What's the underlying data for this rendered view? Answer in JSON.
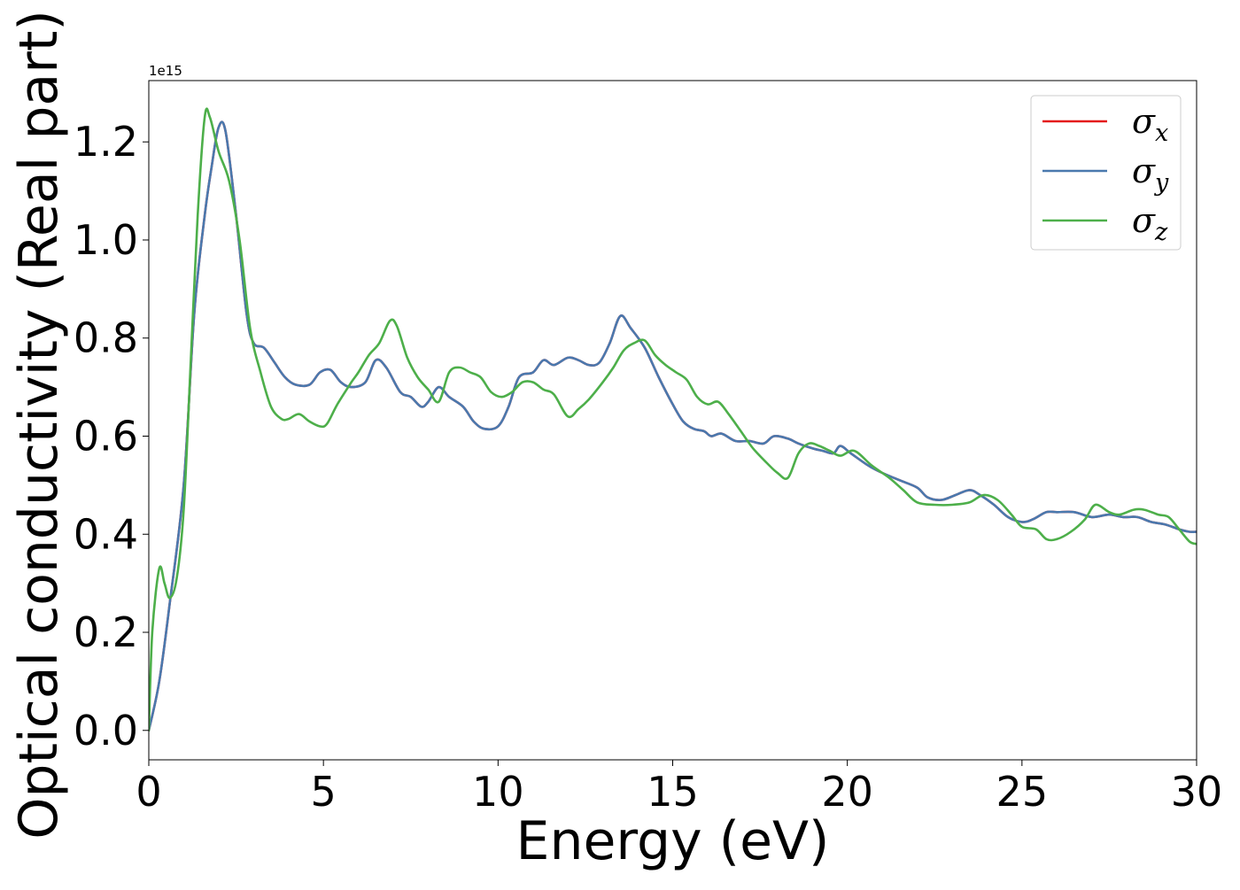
{
  "chart_data": {
    "type": "line",
    "xlabel": "Energy (eV)",
    "ylabel": "Optical conductivity (Real part)",
    "y_offset_text": "1e15",
    "xlim": [
      0,
      30
    ],
    "ylim": [
      -0.06,
      1.325
    ],
    "x_ticks": [
      0,
      5,
      10,
      15,
      20,
      25,
      30
    ],
    "x_tick_labels": [
      "0",
      "5",
      "10",
      "15",
      "20",
      "25",
      "30"
    ],
    "y_ticks": [
      0.0,
      0.2,
      0.4,
      0.6,
      0.8,
      1.0,
      1.2
    ],
    "y_tick_labels": [
      "0.0",
      "0.2",
      "0.4",
      "0.6",
      "0.8",
      "1.0",
      "1.2"
    ],
    "grid": false,
    "legend_position": "top-right",
    "series": [
      {
        "name": "σx",
        "name_base": "σ",
        "name_sub": "x",
        "color": "#e41a1c",
        "points": [
          [
            0,
            0
          ],
          [
            0.3,
            0.1
          ],
          [
            0.6,
            0.26
          ],
          [
            1.0,
            0.5
          ],
          [
            1.3,
            0.85
          ],
          [
            1.6,
            1.05
          ],
          [
            1.8,
            1.15
          ],
          [
            2.0,
            1.23
          ],
          [
            2.2,
            1.22
          ],
          [
            2.5,
            1.05
          ],
          [
            2.8,
            0.85
          ],
          [
            3.0,
            0.79
          ],
          [
            3.3,
            0.78
          ],
          [
            3.6,
            0.75
          ],
          [
            3.9,
            0.72
          ],
          [
            4.2,
            0.705
          ],
          [
            4.6,
            0.705
          ],
          [
            4.9,
            0.73
          ],
          [
            5.2,
            0.735
          ],
          [
            5.5,
            0.71
          ],
          [
            5.8,
            0.7
          ],
          [
            6.2,
            0.71
          ],
          [
            6.5,
            0.755
          ],
          [
            6.8,
            0.74
          ],
          [
            7.2,
            0.69
          ],
          [
            7.5,
            0.68
          ],
          [
            7.8,
            0.66
          ],
          [
            8.0,
            0.67
          ],
          [
            8.3,
            0.7
          ],
          [
            8.6,
            0.68
          ],
          [
            9.0,
            0.66
          ],
          [
            9.3,
            0.63
          ],
          [
            9.6,
            0.615
          ],
          [
            10.0,
            0.62
          ],
          [
            10.3,
            0.66
          ],
          [
            10.6,
            0.72
          ],
          [
            11.0,
            0.73
          ],
          [
            11.3,
            0.755
          ],
          [
            11.6,
            0.745
          ],
          [
            12.0,
            0.76
          ],
          [
            12.3,
            0.755
          ],
          [
            12.6,
            0.745
          ],
          [
            12.9,
            0.75
          ],
          [
            13.2,
            0.79
          ],
          [
            13.5,
            0.845
          ],
          [
            13.8,
            0.82
          ],
          [
            14.2,
            0.78
          ],
          [
            14.6,
            0.72
          ],
          [
            15.0,
            0.665
          ],
          [
            15.3,
            0.63
          ],
          [
            15.6,
            0.615
          ],
          [
            15.9,
            0.61
          ],
          [
            16.1,
            0.6
          ],
          [
            16.4,
            0.605
          ],
          [
            16.8,
            0.59
          ],
          [
            17.2,
            0.59
          ],
          [
            17.6,
            0.585
          ],
          [
            17.9,
            0.6
          ],
          [
            18.3,
            0.595
          ],
          [
            18.6,
            0.585
          ],
          [
            19.0,
            0.575
          ],
          [
            19.3,
            0.57
          ],
          [
            19.6,
            0.565
          ],
          [
            19.8,
            0.58
          ],
          [
            20.1,
            0.565
          ],
          [
            20.6,
            0.54
          ],
          [
            21.0,
            0.525
          ],
          [
            21.5,
            0.51
          ],
          [
            22.0,
            0.495
          ],
          [
            22.3,
            0.475
          ],
          [
            22.7,
            0.47
          ],
          [
            23.1,
            0.48
          ],
          [
            23.5,
            0.49
          ],
          [
            23.8,
            0.48
          ],
          [
            24.2,
            0.46
          ],
          [
            24.6,
            0.435
          ],
          [
            25.0,
            0.425
          ],
          [
            25.3,
            0.43
          ],
          [
            25.7,
            0.445
          ],
          [
            26.0,
            0.445
          ],
          [
            26.5,
            0.445
          ],
          [
            27.0,
            0.435
          ],
          [
            27.5,
            0.44
          ],
          [
            27.9,
            0.435
          ],
          [
            28.3,
            0.435
          ],
          [
            28.7,
            0.425
          ],
          [
            29.1,
            0.42
          ],
          [
            29.5,
            0.41
          ],
          [
            29.8,
            0.405
          ],
          [
            30.0,
            0.405
          ]
        ]
      },
      {
        "name": "σy",
        "name_base": "σ",
        "name_sub": "y",
        "color": "#4a79ae",
        "points": [
          [
            0,
            0
          ],
          [
            0.3,
            0.1
          ],
          [
            0.6,
            0.26
          ],
          [
            1.0,
            0.5
          ],
          [
            1.3,
            0.85
          ],
          [
            1.6,
            1.05
          ],
          [
            1.8,
            1.15
          ],
          [
            2.0,
            1.23
          ],
          [
            2.2,
            1.22
          ],
          [
            2.5,
            1.05
          ],
          [
            2.8,
            0.85
          ],
          [
            3.0,
            0.79
          ],
          [
            3.3,
            0.78
          ],
          [
            3.6,
            0.75
          ],
          [
            3.9,
            0.72
          ],
          [
            4.2,
            0.705
          ],
          [
            4.6,
            0.705
          ],
          [
            4.9,
            0.73
          ],
          [
            5.2,
            0.735
          ],
          [
            5.5,
            0.71
          ],
          [
            5.8,
            0.7
          ],
          [
            6.2,
            0.71
          ],
          [
            6.5,
            0.755
          ],
          [
            6.8,
            0.74
          ],
          [
            7.2,
            0.69
          ],
          [
            7.5,
            0.68
          ],
          [
            7.8,
            0.66
          ],
          [
            8.0,
            0.67
          ],
          [
            8.3,
            0.7
          ],
          [
            8.6,
            0.68
          ],
          [
            9.0,
            0.66
          ],
          [
            9.3,
            0.63
          ],
          [
            9.6,
            0.615
          ],
          [
            10.0,
            0.62
          ],
          [
            10.3,
            0.66
          ],
          [
            10.6,
            0.72
          ],
          [
            11.0,
            0.73
          ],
          [
            11.3,
            0.755
          ],
          [
            11.6,
            0.745
          ],
          [
            12.0,
            0.76
          ],
          [
            12.3,
            0.755
          ],
          [
            12.6,
            0.745
          ],
          [
            12.9,
            0.75
          ],
          [
            13.2,
            0.79
          ],
          [
            13.5,
            0.845
          ],
          [
            13.8,
            0.82
          ],
          [
            14.2,
            0.78
          ],
          [
            14.6,
            0.72
          ],
          [
            15.0,
            0.665
          ],
          [
            15.3,
            0.63
          ],
          [
            15.6,
            0.615
          ],
          [
            15.9,
            0.61
          ],
          [
            16.1,
            0.6
          ],
          [
            16.4,
            0.605
          ],
          [
            16.8,
            0.59
          ],
          [
            17.2,
            0.59
          ],
          [
            17.6,
            0.585
          ],
          [
            17.9,
            0.6
          ],
          [
            18.3,
            0.595
          ],
          [
            18.6,
            0.585
          ],
          [
            19.0,
            0.575
          ],
          [
            19.3,
            0.57
          ],
          [
            19.6,
            0.565
          ],
          [
            19.8,
            0.58
          ],
          [
            20.1,
            0.565
          ],
          [
            20.6,
            0.54
          ],
          [
            21.0,
            0.525
          ],
          [
            21.5,
            0.51
          ],
          [
            22.0,
            0.495
          ],
          [
            22.3,
            0.475
          ],
          [
            22.7,
            0.47
          ],
          [
            23.1,
            0.48
          ],
          [
            23.5,
            0.49
          ],
          [
            23.8,
            0.48
          ],
          [
            24.2,
            0.46
          ],
          [
            24.6,
            0.435
          ],
          [
            25.0,
            0.425
          ],
          [
            25.3,
            0.43
          ],
          [
            25.7,
            0.445
          ],
          [
            26.0,
            0.445
          ],
          [
            26.5,
            0.445
          ],
          [
            27.0,
            0.435
          ],
          [
            27.5,
            0.44
          ],
          [
            27.9,
            0.435
          ],
          [
            28.3,
            0.435
          ],
          [
            28.7,
            0.425
          ],
          [
            29.1,
            0.42
          ],
          [
            29.5,
            0.41
          ],
          [
            29.8,
            0.405
          ],
          [
            30.0,
            0.405
          ]
        ]
      },
      {
        "name": "σz",
        "name_base": "σ",
        "name_sub": "z",
        "color": "#4daf4a",
        "points": [
          [
            0,
            0
          ],
          [
            0.1,
            0.2
          ],
          [
            0.3,
            0.33
          ],
          [
            0.45,
            0.3
          ],
          [
            0.6,
            0.27
          ],
          [
            0.8,
            0.31
          ],
          [
            1.0,
            0.45
          ],
          [
            1.2,
            0.75
          ],
          [
            1.4,
            1.05
          ],
          [
            1.6,
            1.25
          ],
          [
            1.75,
            1.25
          ],
          [
            2.0,
            1.18
          ],
          [
            2.3,
            1.12
          ],
          [
            2.6,
            1.0
          ],
          [
            2.9,
            0.82
          ],
          [
            3.2,
            0.73
          ],
          [
            3.5,
            0.66
          ],
          [
            3.8,
            0.635
          ],
          [
            4.0,
            0.635
          ],
          [
            4.3,
            0.645
          ],
          [
            4.6,
            0.63
          ],
          [
            4.9,
            0.62
          ],
          [
            5.1,
            0.625
          ],
          [
            5.4,
            0.665
          ],
          [
            5.8,
            0.71
          ],
          [
            6.0,
            0.73
          ],
          [
            6.3,
            0.765
          ],
          [
            6.6,
            0.79
          ],
          [
            6.9,
            0.835
          ],
          [
            7.1,
            0.825
          ],
          [
            7.4,
            0.76
          ],
          [
            7.7,
            0.72
          ],
          [
            8.0,
            0.695
          ],
          [
            8.3,
            0.67
          ],
          [
            8.6,
            0.73
          ],
          [
            8.9,
            0.74
          ],
          [
            9.2,
            0.73
          ],
          [
            9.5,
            0.72
          ],
          [
            9.8,
            0.69
          ],
          [
            10.1,
            0.68
          ],
          [
            10.4,
            0.69
          ],
          [
            10.7,
            0.71
          ],
          [
            11.0,
            0.71
          ],
          [
            11.3,
            0.695
          ],
          [
            11.6,
            0.685
          ],
          [
            12.0,
            0.64
          ],
          [
            12.3,
            0.655
          ],
          [
            12.6,
            0.675
          ],
          [
            13.0,
            0.71
          ],
          [
            13.3,
            0.74
          ],
          [
            13.6,
            0.775
          ],
          [
            13.9,
            0.79
          ],
          [
            14.2,
            0.795
          ],
          [
            14.5,
            0.765
          ],
          [
            14.8,
            0.745
          ],
          [
            15.1,
            0.73
          ],
          [
            15.4,
            0.715
          ],
          [
            15.7,
            0.68
          ],
          [
            16.0,
            0.665
          ],
          [
            16.3,
            0.67
          ],
          [
            16.6,
            0.645
          ],
          [
            17.0,
            0.605
          ],
          [
            17.3,
            0.575
          ],
          [
            17.7,
            0.545
          ],
          [
            18.0,
            0.525
          ],
          [
            18.3,
            0.515
          ],
          [
            18.6,
            0.565
          ],
          [
            18.9,
            0.585
          ],
          [
            19.2,
            0.58
          ],
          [
            19.5,
            0.57
          ],
          [
            19.8,
            0.56
          ],
          [
            20.2,
            0.57
          ],
          [
            20.7,
            0.54
          ],
          [
            21.2,
            0.515
          ],
          [
            21.6,
            0.49
          ],
          [
            22.0,
            0.465
          ],
          [
            22.5,
            0.46
          ],
          [
            23.0,
            0.46
          ],
          [
            23.5,
            0.465
          ],
          [
            23.9,
            0.48
          ],
          [
            24.3,
            0.47
          ],
          [
            24.7,
            0.44
          ],
          [
            25.0,
            0.415
          ],
          [
            25.4,
            0.41
          ],
          [
            25.7,
            0.39
          ],
          [
            26.0,
            0.39
          ],
          [
            26.4,
            0.405
          ],
          [
            26.8,
            0.43
          ],
          [
            27.1,
            0.46
          ],
          [
            27.5,
            0.445
          ],
          [
            27.8,
            0.44
          ],
          [
            28.2,
            0.45
          ],
          [
            28.5,
            0.45
          ],
          [
            28.9,
            0.44
          ],
          [
            29.2,
            0.435
          ],
          [
            29.5,
            0.41
          ],
          [
            29.8,
            0.385
          ],
          [
            30.0,
            0.38
          ]
        ]
      }
    ]
  }
}
